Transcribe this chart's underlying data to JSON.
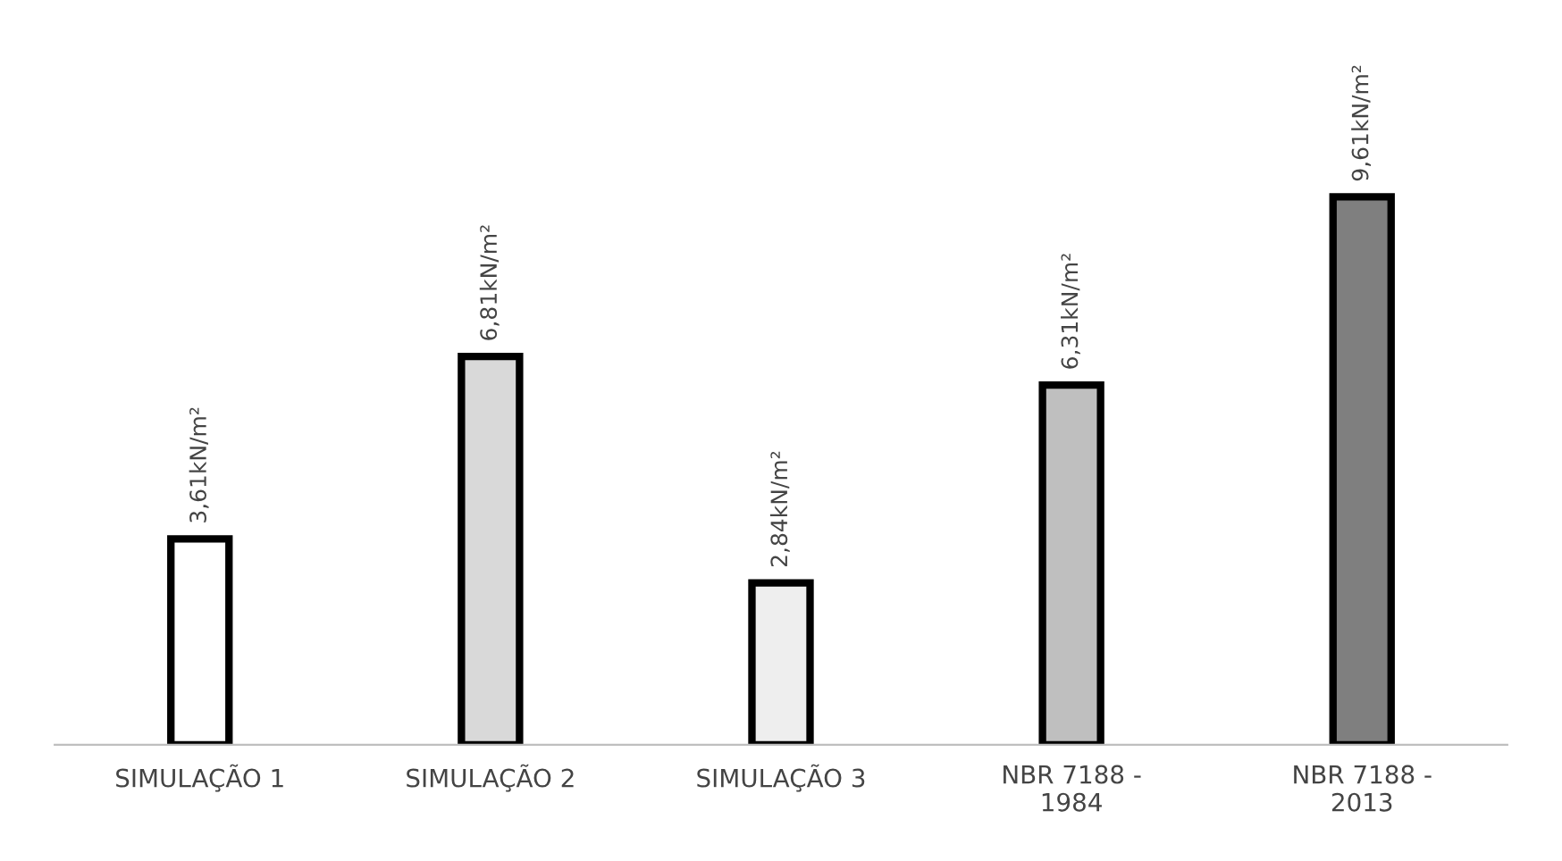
{
  "chart_data": {
    "type": "bar",
    "categories": [
      "SIMULAÇÃO 1",
      "SIMULAÇÃO 2",
      "SIMULAÇÃO 3",
      "NBR 7188 -\n1984",
      "NBR 7188 -\n2013"
    ],
    "values": [
      3.61,
      6.81,
      2.84,
      6.31,
      9.61
    ],
    "value_labels": [
      "3,61kN/m²",
      "6,81kN/m²",
      "2,84kN/m²",
      "6,31kN/m²",
      "9,61kN/m²"
    ],
    "colors": [
      "#ffffff",
      "#d9d9d9",
      "#eeeeee",
      "#bfbfbf",
      "#7f7f7f"
    ],
    "grid": false,
    "legend": false
  }
}
